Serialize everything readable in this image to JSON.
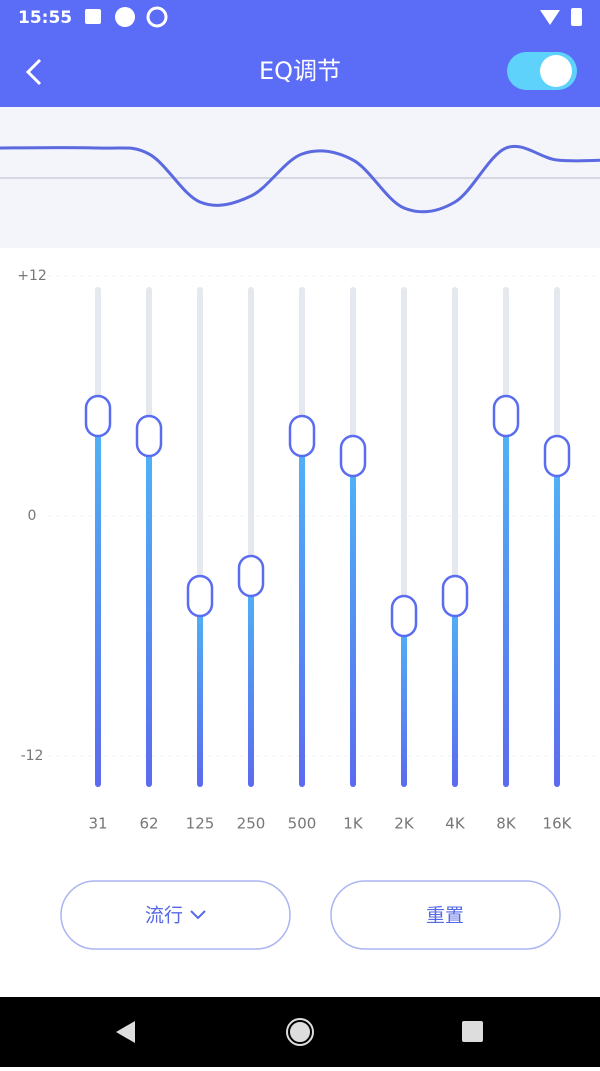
{
  "status_bar": {
    "time": "15:55"
  },
  "header": {
    "title": "EQ调节"
  },
  "eq": {
    "yticks": [
      {
        "value": 12,
        "label": "+12"
      },
      0,
      -12
    ],
    "ylim": [
      -12,
      12
    ],
    "bands": [
      "31",
      "62",
      "125",
      "250",
      "500",
      "1K",
      "2K",
      "4K",
      "8K",
      "16K"
    ],
    "values": [
      5,
      4,
      -4,
      -3,
      4,
      3,
      -5,
      -4,
      5,
      3
    ]
  },
  "buttons": {
    "preset": "流行",
    "reset": "重置"
  }
}
